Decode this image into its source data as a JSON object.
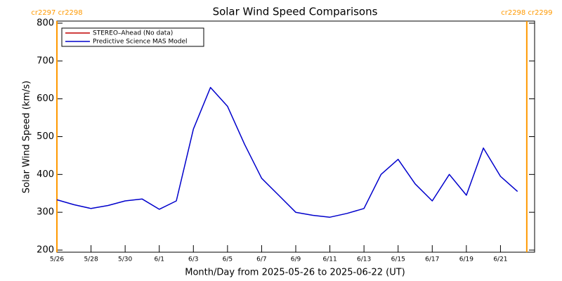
{
  "chart_data": {
    "type": "line",
    "title": "Solar Wind Speed Comparisons",
    "xlabel": "Month/Day from 2025-05-26 to 2025-06-22 (UT)",
    "ylabel": "Solar Wind Speed (km/s)",
    "x": [
      "2025-05-26",
      "2025-05-27",
      "2025-05-28",
      "2025-05-29",
      "2025-05-30",
      "2025-05-31",
      "2025-06-01",
      "2025-06-02",
      "2025-06-03",
      "2025-06-04",
      "2025-06-05",
      "2025-06-06",
      "2025-06-07",
      "2025-06-08",
      "2025-06-09",
      "2025-06-10",
      "2025-06-11",
      "2025-06-12",
      "2025-06-13",
      "2025-06-14",
      "2025-06-15",
      "2025-06-16",
      "2025-06-17",
      "2025-06-18",
      "2025-06-19",
      "2025-06-20",
      "2025-06-21",
      "2025-06-22"
    ],
    "series": [
      {
        "name": "STEREO–Ahead (No data)",
        "color": "#c00000",
        "values": [
          null,
          null,
          null,
          null,
          null,
          null,
          null,
          null,
          null,
          null,
          null,
          null,
          null,
          null,
          null,
          null,
          null,
          null,
          null,
          null,
          null,
          null,
          null,
          null,
          null,
          null,
          null,
          null
        ]
      },
      {
        "name": "Predictive Science MAS Model",
        "color": "#0000cc",
        "values": [
          333,
          320,
          310,
          318,
          330,
          335,
          308,
          330,
          520,
          630,
          580,
          480,
          390,
          345,
          300,
          292,
          287,
          297,
          310,
          400,
          440,
          375,
          330,
          400,
          345,
          470,
          395,
          355
        ]
      }
    ],
    "xlim": [
      "2025-05-26",
      "2025-06-23"
    ],
    "xticks": [
      {
        "value": "2025-05-26",
        "label": "5/26"
      },
      {
        "value": "2025-05-28",
        "label": "5/28"
      },
      {
        "value": "2025-05-30",
        "label": "5/30"
      },
      {
        "value": "2025-06-01",
        "label": "6/1"
      },
      {
        "value": "2025-06-03",
        "label": "6/3"
      },
      {
        "value": "2025-06-05",
        "label": "6/5"
      },
      {
        "value": "2025-06-07",
        "label": "6/7"
      },
      {
        "value": "2025-06-09",
        "label": "6/9"
      },
      {
        "value": "2025-06-11",
        "label": "6/11"
      },
      {
        "value": "2025-06-13",
        "label": "6/13"
      },
      {
        "value": "2025-06-15",
        "label": "6/15"
      },
      {
        "value": "2025-06-17",
        "label": "6/17"
      },
      {
        "value": "2025-06-19",
        "label": "6/19"
      },
      {
        "value": "2025-06-21",
        "label": "6/21"
      }
    ],
    "ylim": [
      200,
      800
    ],
    "yticks": [
      200,
      300,
      400,
      500,
      600,
      700,
      800
    ],
    "legend": "upper left",
    "markers": [
      {
        "x": "2025-05-26T00:00Z",
        "label": "cr2297 cr2298",
        "color": "#ff9900"
      },
      {
        "x": "2025-06-22T13:00Z",
        "label": "cr2298 cr2299",
        "color": "#ff9900"
      }
    ]
  }
}
